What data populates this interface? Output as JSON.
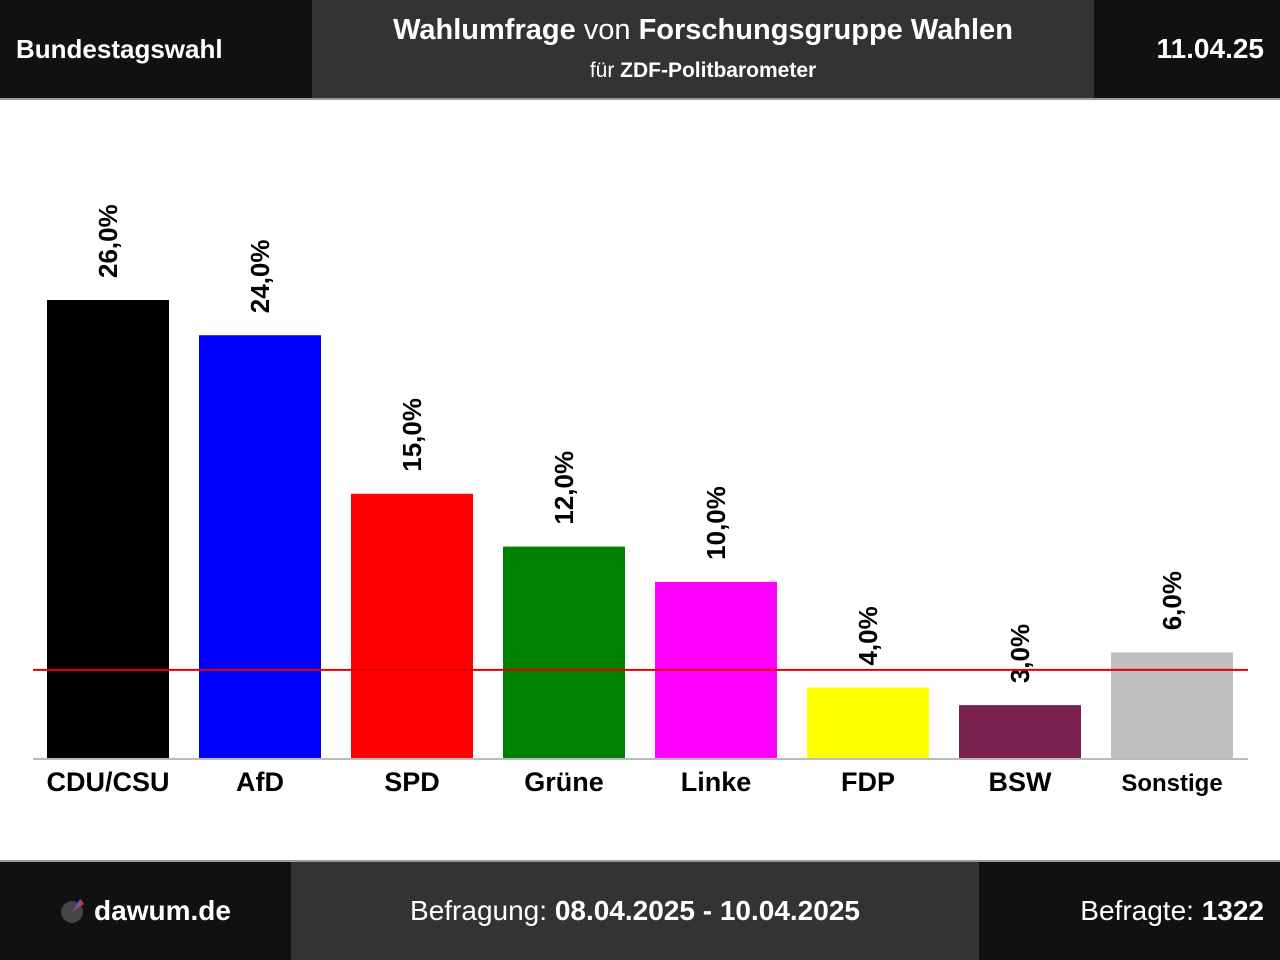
{
  "header": {
    "election": "Bundestagswahl",
    "title_part1": "Wahlumfrage",
    "title_part2": " von ",
    "title_part3": "Forschungsgruppe Wahlen",
    "subtitle_part1": "für ",
    "subtitle_part2": "ZDF-Politbarometer",
    "date": "11.04.25"
  },
  "footer": {
    "brand": "dawum.de",
    "survey_label": "Befragung: ",
    "survey_period": "08.04.2025 - 10.04.2025",
    "respondents_label": "Befragte: ",
    "respondents_value": "1322"
  },
  "chart_data": {
    "type": "bar",
    "categories": [
      "CDU/CSU",
      "AfD",
      "SPD",
      "Grüne",
      "Linke",
      "FDP",
      "BSW",
      "Sonstige"
    ],
    "values": [
      26.0,
      24.0,
      15.0,
      12.0,
      10.0,
      4.0,
      3.0,
      6.0
    ],
    "value_labels": [
      "26,0%",
      "24,0%",
      "15,0%",
      "12,0%",
      "10,0%",
      "4,0%",
      "3,0%",
      "6,0%"
    ],
    "colors": [
      "#000000",
      "#0000ff",
      "#ff0000",
      "#008000",
      "#ff00ff",
      "#ffff00",
      "#7a2150",
      "#c0c0c0"
    ],
    "threshold": 5.0,
    "threshold_color": "#e00000",
    "ylim": [
      0,
      26.0
    ]
  }
}
